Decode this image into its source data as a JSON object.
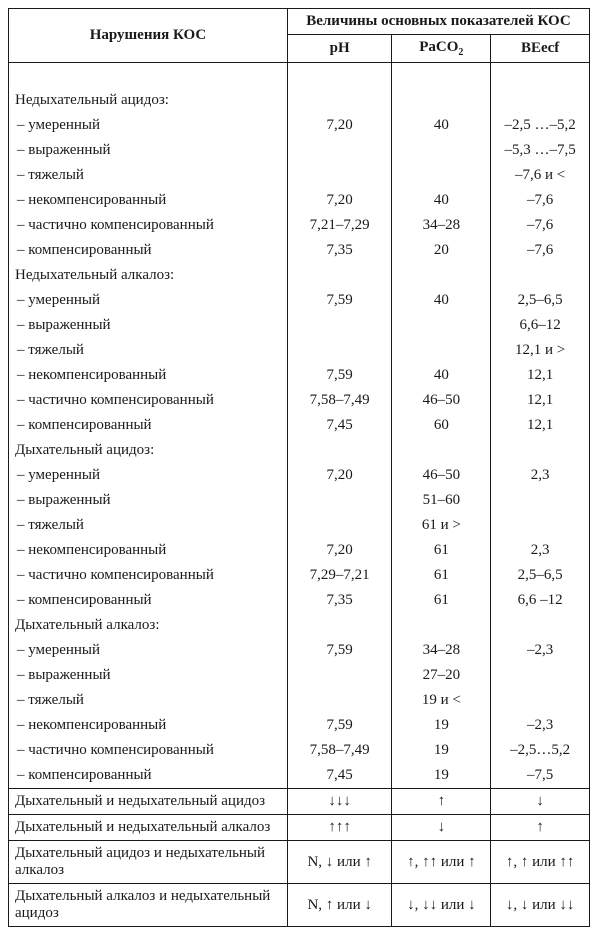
{
  "header": {
    "disorder_col": "Нарушения КОС",
    "values_span": "Величины основных показателей КОС",
    "ph": "pH",
    "paco2_html": "PaCO",
    "paco2_sub": "2",
    "beecf": "BEecf"
  },
  "groups": [
    {
      "title": "Недыхательный ацидоз:",
      "rows": [
        {
          "label": "умеренный",
          "ph": "7,20",
          "paco2": "40",
          "be": "–2,5 …–5,2"
        },
        {
          "label": "выраженный",
          "ph": "",
          "paco2": "",
          "be": "–5,3 …–7,5"
        },
        {
          "label": "тяжелый",
          "ph": "",
          "paco2": "",
          "be": "–7,6 и <"
        },
        {
          "label": "некомпенсированный",
          "ph": "7,20",
          "paco2": "40",
          "be": "–7,6"
        },
        {
          "label": "частично компенсированный",
          "ph": "7,21–7,29",
          "paco2": "34–28",
          "be": "–7,6"
        },
        {
          "label": "компенсированный",
          "ph": "7,35",
          "paco2": "20",
          "be": "–7,6"
        }
      ]
    },
    {
      "title": "Недыхательный алкалоз:",
      "rows": [
        {
          "label": "умеренный",
          "ph": "7,59",
          "paco2": "40",
          "be": "2,5–6,5"
        },
        {
          "label": "выраженный",
          "ph": "",
          "paco2": "",
          "be": "6,6–12"
        },
        {
          "label": "тяжелый",
          "ph": "",
          "paco2": "",
          "be": "12,1 и >"
        },
        {
          "label": "некомпенсированный",
          "ph": "7,59",
          "paco2": "40",
          "be": "12,1"
        },
        {
          "label": "частично компенсированный",
          "ph": "7,58–7,49",
          "paco2": "46–50",
          "be": "12,1"
        },
        {
          "label": "компенсированный",
          "ph": "7,45",
          "paco2": "60",
          "be": "12,1"
        }
      ]
    },
    {
      "title": "Дыхательный ацидоз:",
      "rows": [
        {
          "label": "умеренный",
          "ph": "7,20",
          "paco2": "46–50",
          "be": "2,3"
        },
        {
          "label": "выраженный",
          "ph": "",
          "paco2": "51–60",
          "be": ""
        },
        {
          "label": "тяжелый",
          "ph": "",
          "paco2": "61 и >",
          "be": ""
        },
        {
          "label": "некомпенсированный",
          "ph": "7,20",
          "paco2": "61",
          "be": "2,3"
        },
        {
          "label": "частично компенсированный",
          "ph": "7,29–7,21",
          "paco2": "61",
          "be": "2,5–6,5"
        },
        {
          "label": "компенсированный",
          "ph": "7,35",
          "paco2": "61",
          "be": "6,6 –12"
        }
      ]
    },
    {
      "title": "Дыхательный алкалоз:",
      "rows": [
        {
          "label": "умеренный",
          "ph": "7,59",
          "paco2": "34–28",
          "be": "–2,3"
        },
        {
          "label": "выраженный",
          "ph": "",
          "paco2": "27–20",
          "be": ""
        },
        {
          "label": "тяжелый",
          "ph": "",
          "paco2": "19 и <",
          "be": ""
        },
        {
          "label": "некомпенсированный",
          "ph": "7,59",
          "paco2": "19",
          "be": "–2,3"
        },
        {
          "label": "частично компенсированный",
          "ph": "7,58–7,49",
          "paco2": "19",
          "be": "–2,5…5,2"
        },
        {
          "label": "компенсированный",
          "ph": "7,45",
          "paco2": "19",
          "be": "–7,5"
        }
      ]
    }
  ],
  "mixed": [
    {
      "label": "Дыхательный и недыхательный ацидоз",
      "ph": "↓↓↓",
      "paco2": "↑",
      "be": "↓"
    },
    {
      "label": "Дыхательный и недыхательный алкалоз",
      "ph": "↑↑↑",
      "paco2": "↓",
      "be": "↑"
    },
    {
      "label": "Дыхательный ацидоз и недыхательный алкалоз",
      "ph": "N, ↓ или ↑",
      "paco2": "↑, ↑↑ или ↑",
      "be": "↑, ↑ или ↑↑"
    },
    {
      "label": "Дыхательный алкалоз и недыхательный ацидоз",
      "ph": "N, ↑ или ↓",
      "paco2": "↓, ↓↓ или ↓",
      "be": "↓, ↓ или ↓↓"
    }
  ]
}
